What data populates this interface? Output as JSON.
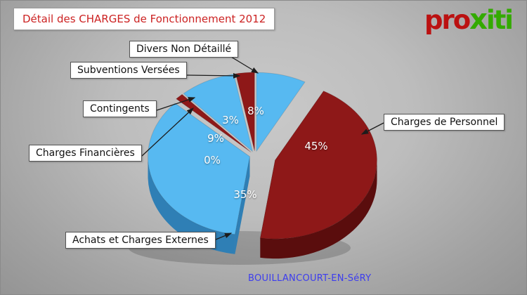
{
  "header": {
    "title": "Détail des CHARGES de Fonctionnement 2012",
    "logo": {
      "part1": "pro",
      "part2": "x",
      "part3": "iti"
    }
  },
  "footer": {
    "commune": "BOUILLANCOURT-EN-SéRY"
  },
  "chart_data": {
    "type": "pie",
    "style": "3d-exploded",
    "title": "Détail des CHARGES de Fonctionnement 2012",
    "unit": "%",
    "legend": "none",
    "order": "clockwise-from-top",
    "slices": [
      {
        "label": "Divers Non Détaillé",
        "value": 8,
        "pct_label": "8%",
        "color": "#57b9f1",
        "color_dark": "#2f7fb5"
      },
      {
        "label": "Charges de Personnel",
        "value": 45,
        "pct_label": "45%",
        "color": "#8e1818",
        "color_dark": "#5a0d0d"
      },
      {
        "label": "Achats et Charges Externes",
        "value": 35,
        "pct_label": "35%",
        "color": "#57b9f1",
        "color_dark": "#2f7fb5"
      },
      {
        "label": "Charges Financières",
        "value": 0,
        "pct_label": "0%",
        "color": "#8e1818",
        "color_dark": "#5a0d0d"
      },
      {
        "label": "Contingents",
        "value": 9,
        "pct_label": "9%",
        "color": "#57b9f1",
        "color_dark": "#2f7fb5"
      },
      {
        "label": "Subventions Versées",
        "value": 3,
        "pct_label": "3%",
        "color": "#8e1818",
        "color_dark": "#5a0d0d"
      }
    ]
  }
}
